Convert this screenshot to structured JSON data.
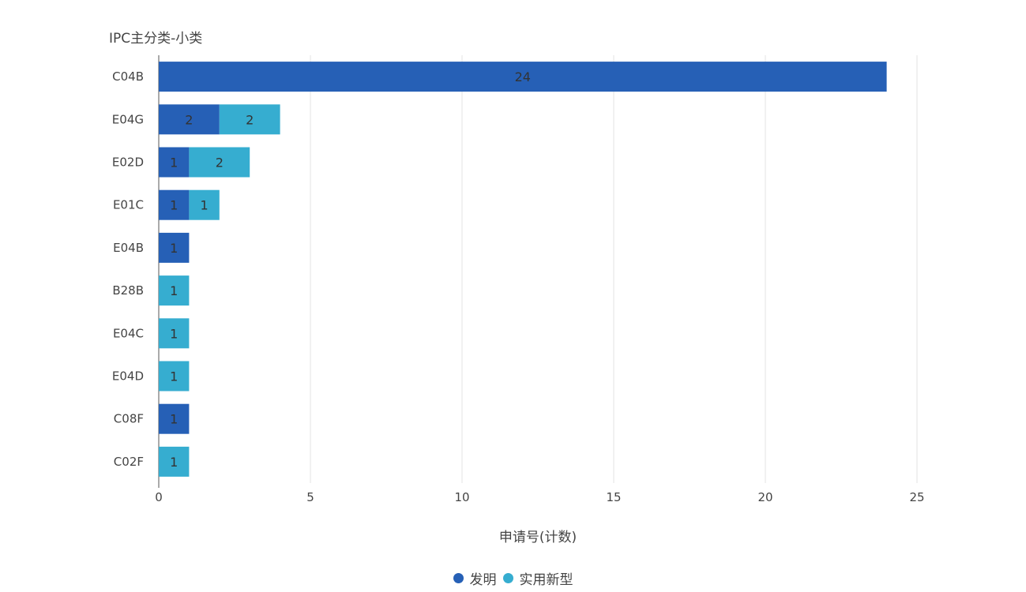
{
  "chart_data": {
    "type": "bar",
    "orientation": "horizontal",
    "stacked": true,
    "ylabel": "IPC主分类-小类",
    "xlabel": "申请号(计数)",
    "categories": [
      "C04B",
      "E04G",
      "E02D",
      "E01C",
      "E04B",
      "B28B",
      "E04C",
      "E04D",
      "C08F",
      "C02F"
    ],
    "series": [
      {
        "name": "发明",
        "color": "#2660B6",
        "values": [
          24,
          2,
          1,
          1,
          1,
          0,
          0,
          0,
          1,
          0
        ]
      },
      {
        "name": "实用新型",
        "color": "#36ADD0",
        "values": [
          0,
          2,
          2,
          1,
          0,
          1,
          1,
          1,
          0,
          1
        ]
      }
    ],
    "xlim": [
      0,
      25
    ],
    "xticks": [
      0,
      5,
      10,
      15,
      20,
      25
    ],
    "grid": true,
    "legend_position": "bottom-center",
    "data_labels": true
  }
}
